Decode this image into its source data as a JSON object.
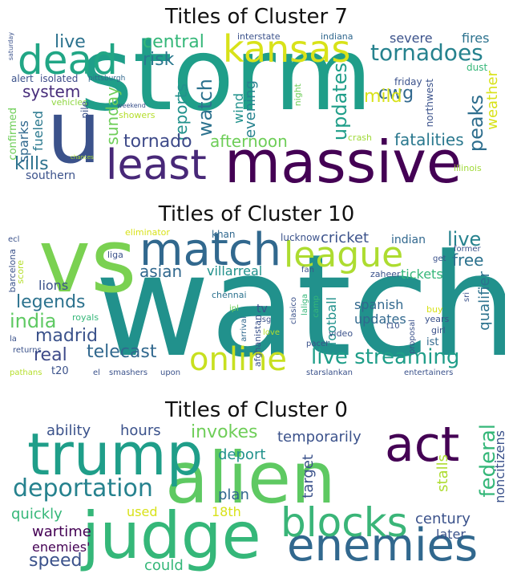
{
  "panels": [
    {
      "title": "Titles of Cluster 7",
      "words": [
        "storm",
        "u",
        "massive",
        "least",
        "dead",
        "kansas",
        "tornadoes",
        "central",
        "risk",
        "live",
        "system",
        "sunday",
        "watch",
        "reports",
        "updates",
        "cwg",
        "mild",
        "peaks",
        "tornado",
        "afternoon",
        "fatalities",
        "kills",
        "southern",
        "sparks",
        "fueled",
        "confirmed",
        "alert",
        "isolated",
        "vehicles",
        "pile",
        "showers",
        "weekend",
        "chances",
        "pittsburgh",
        "wind",
        "evening",
        "interstate",
        "indiana",
        "severe",
        "fires",
        "dust",
        "friday",
        "night",
        "northwest",
        "weather",
        "crash",
        "illinois",
        "saturday"
      ]
    },
    {
      "title": "Titles of Cluster 10",
      "words": [
        "watch",
        "vs",
        "match",
        "league",
        "online",
        "live streaming",
        "telecast",
        "madrid",
        "real",
        "india",
        "legends",
        "lions",
        "asian",
        "villarreal",
        "cricket",
        "live",
        "free",
        "indian",
        "tickets",
        "qualifier",
        "spanish",
        "updates",
        "football",
        "tv",
        "ipl",
        "chennai",
        "lucknow",
        "khan",
        "eliminator",
        "liga",
        "ecl",
        "barcelona",
        "score",
        "royals",
        "la",
        "returns",
        "pathans",
        "t20",
        "el",
        "smashers",
        "upon",
        "afghanistan",
        "arrival",
        "lsg",
        "love",
        "clasico",
        "laliga",
        "camp",
        "video",
        "pacer",
        "fan",
        "zaheer",
        "former",
        "get",
        "buy",
        "years",
        "girl",
        "t10",
        "ist",
        "sri",
        "proposal",
        "starslankan",
        "entertainers"
      ]
    },
    {
      "title": "Titles of Cluster 0",
      "words": [
        "alien",
        "trump",
        "judge",
        "enemies",
        "act",
        "blocks",
        "deportation",
        "invokes",
        "temporarily",
        "ability",
        "hours",
        "deport",
        "plan",
        "federal",
        "stalls",
        "noncitizens",
        "quickly",
        "used",
        "18th",
        "century",
        "later",
        "wartime",
        "enemies'",
        "speed",
        "could",
        "target"
      ]
    }
  ],
  "colors": {
    "purple": "#440154",
    "indigo": "#3b528b",
    "blue": "#31688e",
    "teal": "#21918c",
    "sea": "#1f9e89",
    "green": "#35b779",
    "lime": "#6ece58",
    "yellowgreen": "#b5de2b",
    "yellow": "#fde725"
  }
}
